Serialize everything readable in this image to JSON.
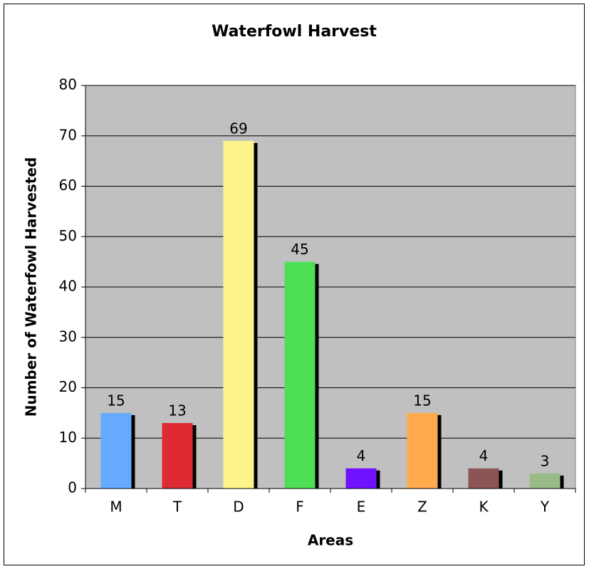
{
  "chart_data": {
    "type": "bar",
    "title": "Waterfowl Harvest",
    "x_label": "Areas",
    "y_label": "Number of Waterfowl Harvested",
    "categories": [
      "M",
      "T",
      "D",
      "F",
      "E",
      "Z",
      "K",
      "Y"
    ],
    "values": [
      15,
      13,
      69,
      45,
      4,
      15,
      4,
      3
    ],
    "colors": [
      "#66aaff",
      "#dd2a33",
      "#fff48c",
      "#4ddf55",
      "#7011ff",
      "#ffaa4d",
      "#8b5555",
      "#99bb88"
    ],
    "ylim": [
      0,
      80
    ],
    "yticks": [
      0,
      10,
      20,
      30,
      40,
      50,
      60,
      70,
      80
    ],
    "grid": true
  }
}
